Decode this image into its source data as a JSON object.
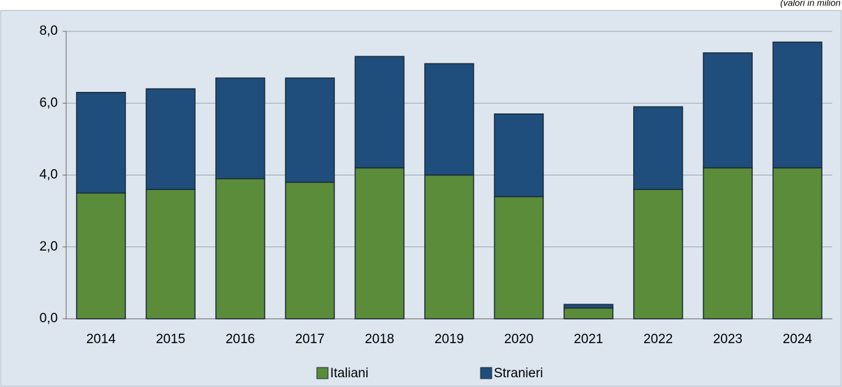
{
  "chart_data": {
    "type": "stacked_bar",
    "note": "(valori in milion",
    "categories": [
      "2014",
      "2015",
      "2016",
      "2017",
      "2018",
      "2019",
      "2020",
      "2021",
      "2022",
      "2023",
      "2024"
    ],
    "series": [
      {
        "name": "Italiani",
        "color": "#5b8c3a",
        "values": [
          3.5,
          3.6,
          3.9,
          3.8,
          4.2,
          4.0,
          3.4,
          0.3,
          3.6,
          4.2,
          4.2
        ]
      },
      {
        "name": "Stranieri",
        "color": "#1f4e7d",
        "values": [
          2.8,
          2.8,
          2.8,
          2.9,
          3.1,
          3.1,
          2.3,
          0.1,
          2.3,
          3.2,
          3.5
        ]
      }
    ],
    "ylim": [
      0,
      8
    ],
    "yticks": [
      {
        "value": 0,
        "label": "0,0"
      },
      {
        "value": 2,
        "label": "2,0"
      },
      {
        "value": 4,
        "label": "4,0"
      },
      {
        "value": 6,
        "label": "6,0"
      },
      {
        "value": 8,
        "label": "8,0"
      }
    ],
    "grid": true,
    "legend": "bottom"
  }
}
